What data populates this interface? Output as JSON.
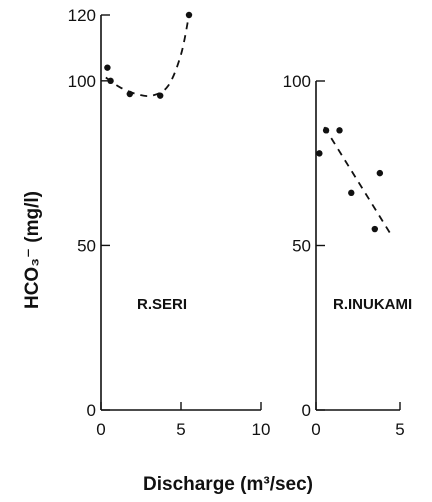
{
  "chart_data": [
    {
      "type": "scatter",
      "panel_label": "R.SERI",
      "xlim": [
        0,
        10
      ],
      "ylim": [
        0,
        120
      ],
      "x_ticks": [
        0,
        5,
        10
      ],
      "y_ticks": [
        0,
        50,
        100,
        120
      ],
      "x_tick_labels": [
        "0",
        "5",
        "10"
      ],
      "y_tick_labels": [
        "0",
        "50",
        "100",
        "120"
      ],
      "points": [
        {
          "x": 0.4,
          "y": 104
        },
        {
          "x": 0.6,
          "y": 100
        },
        {
          "x": 1.8,
          "y": 96
        },
        {
          "x": 3.7,
          "y": 95.5
        },
        {
          "x": 5.5,
          "y": 120
        }
      ],
      "fit_line": {
        "style": "dashed",
        "shape": "curve",
        "points": [
          [
            0.3,
            101
          ],
          [
            1.2,
            98
          ],
          [
            2.2,
            96
          ],
          [
            3.2,
            95.5
          ],
          [
            4.2,
            98.5
          ],
          [
            5.0,
            108
          ],
          [
            5.5,
            120
          ]
        ]
      },
      "grid": false
    },
    {
      "type": "scatter",
      "panel_label": "R.INUKAMI",
      "xlim": [
        0,
        5
      ],
      "ylim": [
        0,
        100
      ],
      "x_ticks": [
        0,
        5
      ],
      "y_ticks": [
        0,
        50,
        100
      ],
      "x_tick_labels": [
        "0",
        "5"
      ],
      "y_tick_labels": [
        "0",
        "50",
        "100"
      ],
      "points": [
        {
          "x": 0.2,
          "y": 78
        },
        {
          "x": 0.6,
          "y": 85
        },
        {
          "x": 1.4,
          "y": 85
        },
        {
          "x": 2.1,
          "y": 66
        },
        {
          "x": 3.5,
          "y": 55
        },
        {
          "x": 3.8,
          "y": 72
        }
      ],
      "fit_line": {
        "style": "dashed",
        "shape": "line",
        "points": [
          [
            0.5,
            86
          ],
          [
            4.5,
            53
          ]
        ]
      },
      "grid": false
    }
  ],
  "ylabel": "HCO₃⁻ (mg/l)",
  "xlabel": "Discharge (m³/sec)",
  "colors": {
    "ink": "#111111",
    "background": "#ffffff"
  }
}
